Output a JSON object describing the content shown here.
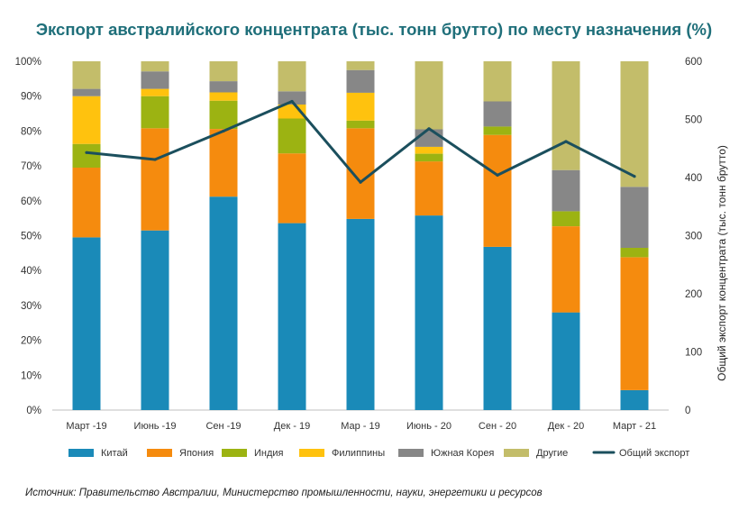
{
  "chart_data": {
    "type": "bar",
    "title": "Экспорт австралийского концентрата (тыс. тонн брутто) по месту назначения (%)",
    "categories": [
      "Март -19",
      "Июнь -19",
      "Сен -19",
      "Дек - 19",
      "Мар - 19",
      "Июнь - 20",
      "Сен - 20",
      "Дек - 20",
      "Март - 21"
    ],
    "stacked": true,
    "y_left": {
      "ticks": [
        "0%",
        "10%",
        "20%",
        "30%",
        "40%",
        "50%",
        "60%",
        "70%",
        "80%",
        "90%",
        "100%"
      ],
      "ylim": [
        0,
        100
      ]
    },
    "y_right": {
      "label": "Общий экспорт концентрата (тыс. тонн брутто)",
      "ticks": [
        "0",
        "100",
        "200",
        "300",
        "400",
        "500",
        "600"
      ],
      "ylim": [
        0,
        600
      ]
    },
    "series": [
      {
        "name": "Китай",
        "color": "#1a8ab8",
        "values": [
          49.5,
          51.5,
          61.2,
          53.6,
          54.8,
          55.8,
          46.8,
          28.0,
          5.7
        ]
      },
      {
        "name": "Япония",
        "color": "#f58b0e",
        "values": [
          20.0,
          29.3,
          19.4,
          20.0,
          26.0,
          15.5,
          32.1,
          24.7,
          38.1
        ]
      },
      {
        "name": "Индия",
        "color": "#9cb312",
        "values": [
          6.8,
          9.2,
          8.1,
          10.0,
          2.2,
          2.2,
          2.4,
          4.3,
          2.7
        ]
      },
      {
        "name": "Филиппины",
        "color": "#ffc20e",
        "values": [
          13.7,
          2.1,
          2.4,
          4.0,
          8.0,
          2.0,
          0.0,
          0.0,
          0.0
        ]
      },
      {
        "name": "Южная Корея",
        "color": "#878787",
        "values": [
          2.1,
          5.0,
          3.2,
          3.8,
          6.5,
          5.0,
          7.2,
          11.8,
          17.5
        ]
      },
      {
        "name": "Другие",
        "color": "#c3bd6a",
        "values": [
          7.9,
          2.9,
          5.7,
          8.6,
          2.5,
          19.5,
          11.5,
          31.2,
          36.0
        ]
      }
    ],
    "line": {
      "name": "Общий экспорт",
      "color": "#1b4f5d",
      "axis": "right",
      "values": [
        443,
        431,
        480,
        531,
        392,
        484,
        404,
        462,
        402
      ]
    },
    "legend_position": "bottom",
    "grid": false
  },
  "source": "Источник: Правительство Австралии, Министерство промышленности, науки, энергетики и ресурсов"
}
